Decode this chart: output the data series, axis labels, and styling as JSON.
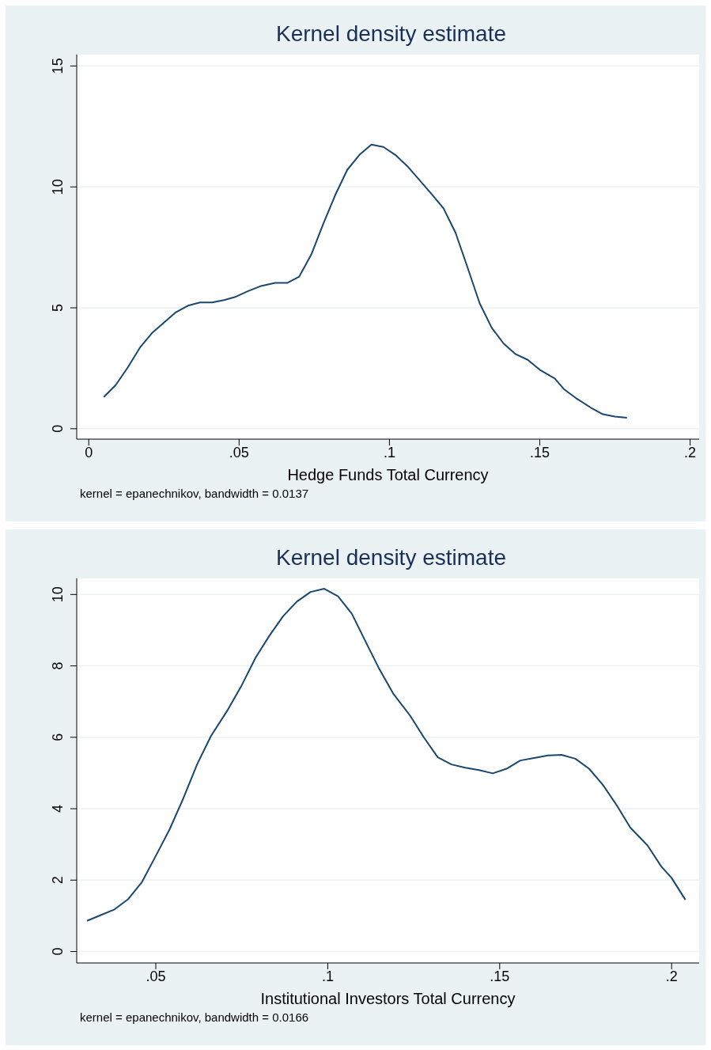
{
  "chart_data": [
    {
      "type": "line",
      "title": "Kernel density estimate",
      "xlabel": "Hedge Funds Total Currency",
      "annotations": [
        "kernel = epanechnikov, bandwidth = 0.0137"
      ],
      "x": [
        0.005,
        0.009,
        0.013,
        0.017,
        0.021,
        0.025,
        0.029,
        0.033,
        0.037,
        0.041,
        0.045,
        0.049,
        0.053,
        0.057,
        0.062,
        0.066,
        0.07,
        0.074,
        0.078,
        0.082,
        0.086,
        0.09,
        0.094,
        0.098,
        0.102,
        0.106,
        0.11,
        0.114,
        0.118,
        0.122,
        0.126,
        0.13,
        0.134,
        0.138,
        0.142,
        0.146,
        0.15,
        0.155,
        0.158,
        0.162,
        0.167,
        0.171,
        0.175,
        0.179
      ],
      "values": [
        1.31,
        1.81,
        2.54,
        3.35,
        3.95,
        4.39,
        4.82,
        5.09,
        5.22,
        5.22,
        5.32,
        5.46,
        5.69,
        5.89,
        6.03,
        6.03,
        6.29,
        7.2,
        8.47,
        9.67,
        10.71,
        11.32,
        11.75,
        11.65,
        11.32,
        10.85,
        10.28,
        9.71,
        9.11,
        8.1,
        6.66,
        5.19,
        4.18,
        3.52,
        3.08,
        2.85,
        2.44,
        2.08,
        1.64,
        1.27,
        0.87,
        0.6,
        0.5,
        0.45
      ],
      "color": "#1a476f",
      "xlim": [
        -0.004,
        0.203
      ],
      "xticks": [
        0,
        {
          "value": 0.05,
          "label": ".05"
        },
        {
          "value": 0.1,
          "label": ".1"
        },
        {
          "value": 0.15,
          "label": ".15"
        },
        {
          "value": 0.2,
          "label": ".2"
        }
      ],
      "ylim": [
        -0.43,
        15.47
      ],
      "yticks": [
        0,
        5,
        10,
        15
      ],
      "grid": "y"
    },
    {
      "type": "line",
      "title": "Kernel density estimate",
      "xlabel": "Institutional Investors Total Currency",
      "annotations": [
        "kernel = epanechnikov, bandwidth = 0.0166"
      ],
      "x": [
        0.03,
        0.034,
        0.038,
        0.042,
        0.046,
        0.05,
        0.054,
        0.058,
        0.062,
        0.066,
        0.071,
        0.075,
        0.079,
        0.083,
        0.087,
        0.091,
        0.095,
        0.099,
        0.103,
        0.107,
        0.111,
        0.115,
        0.119,
        0.124,
        0.128,
        0.132,
        0.136,
        0.14,
        0.144,
        0.148,
        0.152,
        0.156,
        0.16,
        0.164,
        0.168,
        0.172,
        0.176,
        0.18,
        0.184,
        0.188,
        0.193,
        0.197,
        0.2,
        0.204
      ],
      "values": [
        0.86,
        1.02,
        1.18,
        1.47,
        1.95,
        2.68,
        3.42,
        4.29,
        5.24,
        6.03,
        6.78,
        7.46,
        8.23,
        8.84,
        9.39,
        9.8,
        10.07,
        10.16,
        9.95,
        9.46,
        8.68,
        7.91,
        7.23,
        6.6,
        5.99,
        5.44,
        5.24,
        5.15,
        5.08,
        4.99,
        5.12,
        5.35,
        5.42,
        5.49,
        5.51,
        5.4,
        5.12,
        4.67,
        4.1,
        3.47,
        2.97,
        2.38,
        2.06,
        1.45
      ],
      "color": "#1a476f",
      "xlim": [
        0.027,
        0.208
      ],
      "xticks": [
        {
          "value": 0.05,
          "label": ".05"
        },
        {
          "value": 0.1,
          "label": ".1"
        },
        {
          "value": 0.15,
          "label": ".15"
        },
        {
          "value": 0.2,
          "label": ".2"
        }
      ],
      "ylim": [
        -0.32,
        10.45
      ],
      "yticks": [
        0,
        2,
        4,
        6,
        8,
        10
      ],
      "grid": "y"
    }
  ]
}
